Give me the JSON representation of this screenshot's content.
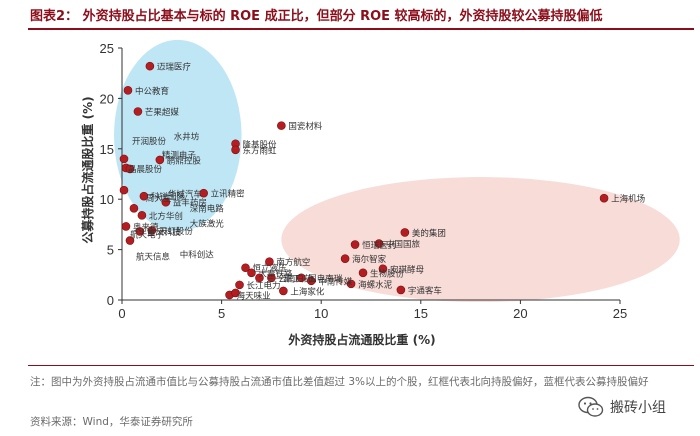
{
  "title": "图表2： 外资持股占比基本与标的 ROE 成正比，但部分 ROE 较高标的，外资持股较公募持股偏低",
  "note": "注：图中为外资持股占流通市值比与公募持股占流通市值比差值超过 3%以上的个股，红框代表北向持股偏好，蓝框代表公募持股偏好",
  "source": "资料来源：Wind，华泰证券研究所",
  "watermark": "搬砖小组",
  "colors": {
    "title": "#8b0e1a",
    "point": "#b41e22",
    "blue_zone": "#bfe6f5",
    "red_zone": "#f8dcd8"
  },
  "chart_data": {
    "type": "scatter",
    "xlabel": "外资持股占流通股比重 (%)",
    "ylabel": "公募持股占流通股比重 (%)",
    "xlim": [
      0,
      25
    ],
    "ylim": [
      0,
      25
    ],
    "xticks": [
      0,
      5,
      10,
      15,
      20,
      25
    ],
    "yticks": [
      0,
      5,
      10,
      15,
      20,
      25
    ],
    "grid": false,
    "points": [
      {
        "x": 1.4,
        "y": 23.2,
        "label": "迈瑞医疗"
      },
      {
        "x": 0.3,
        "y": 20.8,
        "label": "中公教育"
      },
      {
        "x": 0.8,
        "y": 18.7,
        "label": "芒果超媒"
      },
      {
        "x": 8.0,
        "y": 17.3,
        "label": "国瓷材料"
      },
      {
        "x": 5.7,
        "y": 15.5,
        "label": "隆基股份"
      },
      {
        "x": 5.7,
        "y": 14.9,
        "label": "东方雨虹"
      },
      {
        "x": 0.1,
        "y": 14.0,
        "label": ""
      },
      {
        "x": 0.2,
        "y": 13.1,
        "label": ""
      },
      {
        "x": 0.4,
        "y": 13.0,
        "label": ""
      },
      {
        "x": 1.9,
        "y": 13.9,
        "label": "鹏鼎控股"
      },
      {
        "x": 0.1,
        "y": 10.9,
        "label": ""
      },
      {
        "x": 4.1,
        "y": 10.6,
        "label": "立讯精密"
      },
      {
        "x": 1.1,
        "y": 10.3,
        "label": "科锐国际"
      },
      {
        "x": 2.2,
        "y": 9.7,
        "label": "益丰药房"
      },
      {
        "x": 0.6,
        "y": 9.1,
        "label": ""
      },
      {
        "x": 1.0,
        "y": 8.4,
        "label": "北方华创"
      },
      {
        "x": 0.2,
        "y": 7.3,
        "label": "奥来德"
      },
      {
        "x": 0.9,
        "y": 6.8,
        "label": "金风科技"
      },
      {
        "x": 1.5,
        "y": 6.9,
        "label": "天虹股份"
      },
      {
        "x": 0.4,
        "y": 5.9,
        "label": ""
      },
      {
        "x": 24.2,
        "y": 10.1,
        "label": "上海机场"
      },
      {
        "x": 14.2,
        "y": 6.7,
        "label": "美的集团"
      },
      {
        "x": 11.7,
        "y": 5.5,
        "label": "恒瑞医药"
      },
      {
        "x": 12.9,
        "y": 5.6,
        "label": "中国国旅"
      },
      {
        "x": 11.2,
        "y": 4.1,
        "label": "海尔智家"
      },
      {
        "x": 13.1,
        "y": 3.1,
        "label": "安琪酵母"
      },
      {
        "x": 12.1,
        "y": 2.7,
        "label": "生物股份"
      },
      {
        "x": 14.0,
        "y": 1.0,
        "label": "宇通客车"
      },
      {
        "x": 11.5,
        "y": 1.6,
        "label": "海螺水泥"
      },
      {
        "x": 7.4,
        "y": 3.8,
        "label": "南方航空"
      },
      {
        "x": 7.5,
        "y": 2.2,
        "label": "云南白药"
      },
      {
        "x": 6.2,
        "y": 3.2,
        "label": "恒立液压"
      },
      {
        "x": 6.9,
        "y": 2.2,
        "label": "三一重工"
      },
      {
        "x": 9.0,
        "y": 2.2,
        "label": "国电南瑞"
      },
      {
        "x": 9.5,
        "y": 1.9,
        "label": "中南传媒"
      },
      {
        "x": 5.9,
        "y": 1.5,
        "label": "长江电力"
      },
      {
        "x": 8.1,
        "y": 0.9,
        "label": "上海家化"
      },
      {
        "x": 5.4,
        "y": 0.5,
        "label": "海天味业"
      },
      {
        "x": 5.7,
        "y": 0.7,
        "label": ""
      },
      {
        "x": 6.5,
        "y": 2.7,
        "label": "大秦铁路"
      }
    ],
    "annotations": [
      {
        "text": "水井坊",
        "x": 2.6,
        "y": 15.9
      },
      {
        "text": "开润股份",
        "x": 0.5,
        "y": 15.5
      },
      {
        "text": "精测电子",
        "x": 2.0,
        "y": 14.1
      },
      {
        "text": "晶晨股份",
        "x": 0.3,
        "y": 12.7
      },
      {
        "x": 2.3,
        "y": 10.2,
        "text": "华域汽车"
      },
      {
        "x": 1.2,
        "y": 9.8,
        "text": "周大生"
      },
      {
        "x": 3.4,
        "y": 8.8,
        "text": "深南电路"
      },
      {
        "x": 3.4,
        "y": 7.3,
        "text": "大族激光"
      },
      {
        "x": 0.4,
        "y": 6.2,
        "text": "航天电子"
      },
      {
        "x": 2.9,
        "y": 4.2,
        "text": "中科创达"
      },
      {
        "x": 0.7,
        "y": 4.0,
        "text": "航天信息"
      }
    ],
    "zones": [
      {
        "name": "公募持股偏好",
        "color": "#bfe6f5",
        "cx": 2.8,
        "cy": 16.3,
        "rx": 3.2,
        "ry": 9.5
      },
      {
        "name": "北向持股偏好",
        "color": "#f8dcd8",
        "cx": 18.0,
        "cy": 6.0,
        "rx": 10.0,
        "ry": 6.2
      }
    ]
  }
}
